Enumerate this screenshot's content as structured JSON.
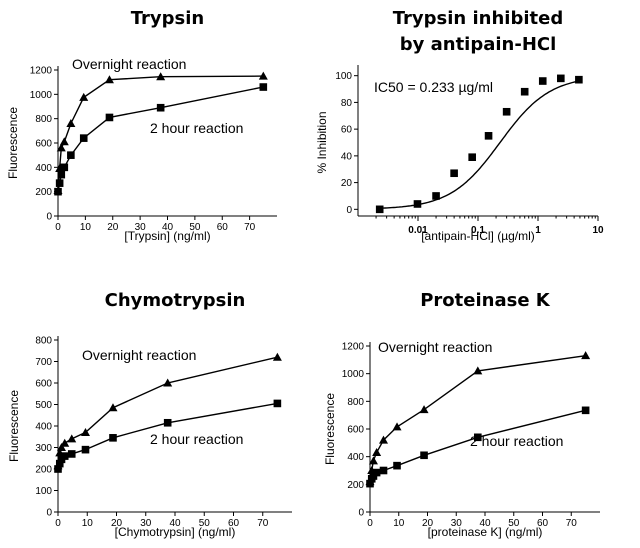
{
  "chart_data": [
    {
      "type": "line",
      "title": "Trypsin",
      "xlabel": "[Trypsin] (ng/ml)",
      "ylabel": "Fluorescence",
      "xlim": [
        0,
        80
      ],
      "ylim": [
        0,
        1200
      ],
      "xticks": [
        0,
        10,
        20,
        30,
        40,
        50,
        60,
        70
      ],
      "yticks": [
        0,
        200,
        400,
        600,
        800,
        1000,
        1200
      ],
      "series": [
        {
          "name": "Overnight reaction",
          "marker": "triangle",
          "x": [
            0,
            0.6,
            1.2,
            2.3,
            4.7,
            9.4,
            18.8,
            37.5,
            75
          ],
          "y": [
            210,
            390,
            560,
            610,
            760,
            975,
            1120,
            1145,
            1150
          ]
        },
        {
          "name": "2 hour reaction",
          "marker": "square",
          "x": [
            0,
            0.6,
            1.2,
            2.3,
            4.7,
            9.4,
            18.8,
            37.5,
            75
          ],
          "y": [
            200,
            270,
            340,
            400,
            500,
            640,
            810,
            890,
            1060
          ]
        }
      ],
      "annotations": [
        "Overnight reaction",
        "2 hour reaction"
      ]
    },
    {
      "type": "scatter",
      "title": "Trypsin inhibited by antipain-HCl",
      "title_lines": [
        "Trypsin inhibited",
        "by antipain-HCl"
      ],
      "xlabel": "[antipain-HCl] (µg/ml)",
      "ylabel": "% Inhibition",
      "xscale": "log",
      "xlim": [
        0.001,
        10
      ],
      "ylim": [
        -5,
        105
      ],
      "xticks": [
        0.01,
        0.1,
        1,
        10
      ],
      "xticklabels": [
        "0.01",
        "0.1",
        "1",
        "10"
      ],
      "yticks": [
        0,
        20,
        40,
        60,
        80,
        100
      ],
      "series": [
        {
          "marker": "square",
          "x": [
            0.0023,
            0.0098,
            0.02,
            0.04,
            0.08,
            0.15,
            0.3,
            0.6,
            1.2,
            2.4,
            4.8
          ],
          "y": [
            0,
            4,
            10,
            27,
            39,
            55,
            73,
            88,
            96,
            98,
            97
          ]
        }
      ],
      "fit": {
        "ic50": 0.233,
        "hill": 1.05,
        "top": 100,
        "bottom": 0
      },
      "annotations": [
        "IC50 = 0.233 µg/ml"
      ]
    },
    {
      "type": "line",
      "title": "Chymotrypsin",
      "xlabel": "[Chymotrypsin] (ng/ml)",
      "ylabel": "Fluorescence",
      "xlim": [
        0,
        80
      ],
      "ylim": [
        0,
        800
      ],
      "xticks": [
        0,
        10,
        20,
        30,
        40,
        50,
        60,
        70
      ],
      "yticks": [
        0,
        100,
        200,
        300,
        400,
        500,
        600,
        700,
        800
      ],
      "series": [
        {
          "name": "Overnight reaction",
          "marker": "triangle",
          "x": [
            0,
            0.6,
            1.2,
            2.3,
            4.7,
            9.4,
            18.8,
            37.5,
            75
          ],
          "y": [
            215,
            275,
            300,
            320,
            340,
            370,
            485,
            600,
            720
          ]
        },
        {
          "name": "2 hour reaction",
          "marker": "square",
          "x": [
            0,
            0.6,
            1.2,
            2.3,
            4.7,
            9.4,
            18.8,
            37.5,
            75
          ],
          "y": [
            200,
            225,
            245,
            260,
            270,
            290,
            345,
            415,
            505
          ]
        }
      ],
      "annotations": [
        "Overnight reaction",
        "2 hour reaction"
      ]
    },
    {
      "type": "line",
      "title": "Proteinase K",
      "xlabel": "[proteinase K] (ng/ml)",
      "ylabel": "Fluorescence",
      "xlim": [
        0,
        80
      ],
      "ylim": [
        0,
        1200
      ],
      "xticks": [
        0,
        10,
        20,
        30,
        40,
        50,
        60,
        70
      ],
      "yticks": [
        0,
        200,
        400,
        600,
        800,
        1000,
        1200
      ],
      "series": [
        {
          "name": "Overnight reaction",
          "marker": "triangle",
          "x": [
            0,
            0.6,
            1.2,
            2.3,
            4.7,
            9.4,
            18.8,
            37.5,
            75
          ],
          "y": [
            220,
            300,
            370,
            430,
            520,
            615,
            740,
            1020,
            1130
          ]
        },
        {
          "name": "2 hour reaction",
          "marker": "square",
          "x": [
            0,
            0.6,
            1.2,
            2.3,
            4.7,
            9.4,
            18.8,
            37.5,
            75
          ],
          "y": [
            205,
            240,
            260,
            285,
            300,
            335,
            410,
            540,
            735
          ]
        }
      ],
      "annotations": [
        "Overnight reaction",
        "2 hour reaction"
      ]
    }
  ]
}
